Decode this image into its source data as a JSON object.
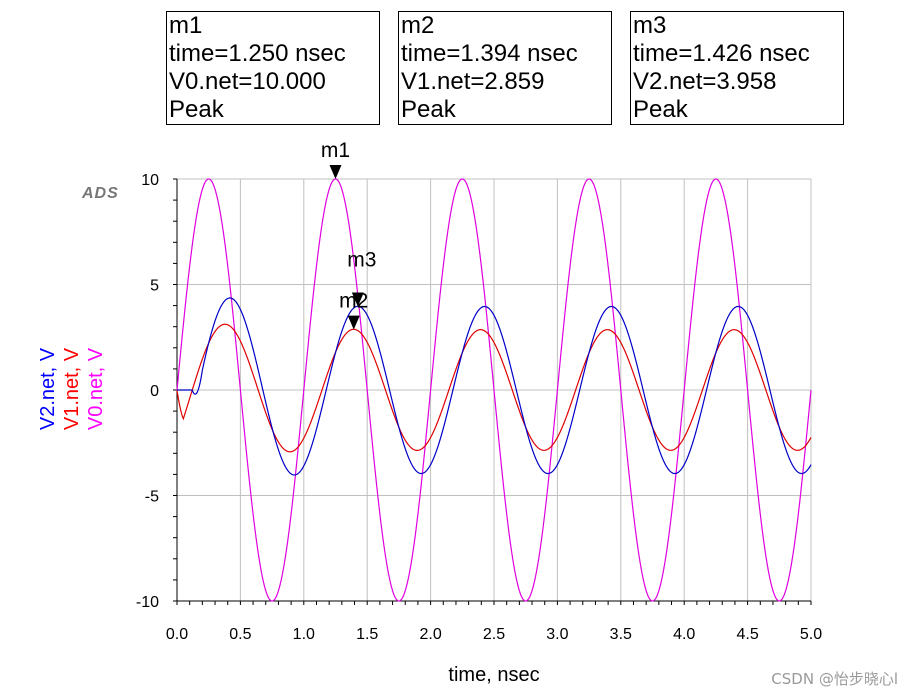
{
  "markers": [
    {
      "name": "m1",
      "line1": "time=1.250 nsec",
      "line2": "V0.net=10.000",
      "line3": "Peak"
    },
    {
      "name": "m2",
      "line1": "time=1.394 nsec",
      "line2": "V1.net=2.859",
      "line3": "Peak"
    },
    {
      "name": "m3",
      "line1": "time=1.426 nsec",
      "line2": "V2.net=3.958",
      "line3": "Peak"
    }
  ],
  "logo_text": "ADS",
  "watermark": "CSDN @怡步晓心l",
  "chart_data": {
    "type": "line",
    "xlabel": "time, nsec",
    "ylabel_parts": [
      {
        "text": "V2.net, V",
        "color": "#0000ff"
      },
      {
        "text": "V1.net, V",
        "color": "#ff0000"
      },
      {
        "text": "V0.net, V",
        "color": "#ff00ff"
      }
    ],
    "xlim": [
      0,
      5
    ],
    "ylim": [
      -10,
      10
    ],
    "xticks": [
      "0.0",
      "0.5",
      "1.0",
      "1.5",
      "2.0",
      "2.5",
      "3.0",
      "3.5",
      "4.0",
      "4.5",
      "5.0"
    ],
    "yticks": [
      "10",
      "5",
      "0",
      "-5",
      "-10"
    ],
    "grid": true,
    "series": [
      {
        "name": "V0.net",
        "color": "#e000e0",
        "freq_ghz": 1.0,
        "amplitude": 10.0,
        "phase_peak_ns": 0.25,
        "delay_ns": 0
      },
      {
        "name": "V1.net",
        "color": "#e00000",
        "freq_ghz": 1.0,
        "amplitude": 2.859,
        "peak_ns": 1.394,
        "startup": "rising to ~3.5 peak near 0.38 ns"
      },
      {
        "name": "V2.net",
        "color": "#0000c8",
        "freq_ghz": 1.0,
        "amplitude": 3.958,
        "peak_ns": 1.426,
        "delay_ns": 0.12,
        "startup": "first peak ~4.3 near 0.45 ns"
      }
    ],
    "marker_points": [
      {
        "label": "m1",
        "x": 1.25,
        "y": 10.0
      },
      {
        "label": "m2",
        "x": 1.394,
        "y": 2.859
      },
      {
        "label": "m3",
        "x": 1.426,
        "y": 3.958
      }
    ]
  }
}
